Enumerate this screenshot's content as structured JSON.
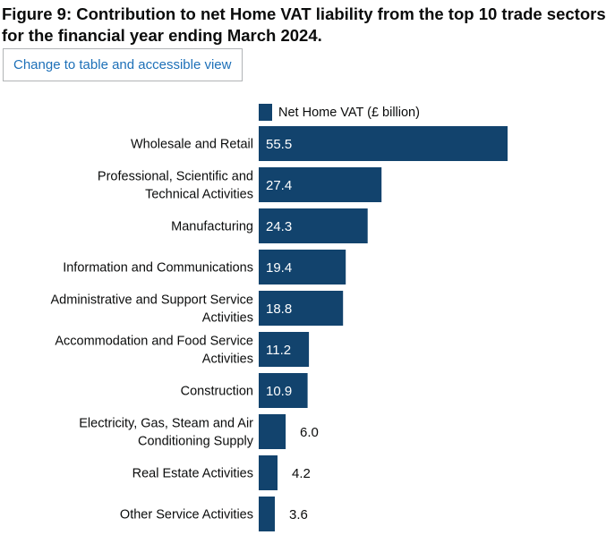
{
  "figure": {
    "title": "Figure 9: Contribution to net Home VAT liability from the top 10 trade sectors for the financial year ending March 2024.",
    "toggle_label": "Change to table and accessible view"
  },
  "colors": {
    "bar": "#12436d",
    "text": "#0b0c0c",
    "link": "#1d70b8",
    "inside_label": "#ffffff"
  },
  "chart_data": {
    "type": "bar",
    "orientation": "horizontal",
    "title": "Figure 9: Contribution to net Home VAT liability from the top 10 trade sectors for the financial year ending March 2024.",
    "xlabel": "",
    "ylabel": "",
    "xlim": [
      0,
      55.5
    ],
    "grid": false,
    "legend_position": "top",
    "series": [
      {
        "name": "Net Home VAT (£ billion)",
        "values": [
          55.5,
          27.4,
          24.3,
          19.4,
          18.8,
          11.2,
          10.9,
          6.0,
          4.2,
          3.6
        ]
      }
    ],
    "categories": [
      [
        "Wholesale and Retail"
      ],
      [
        "Professional, Scientific and",
        "Technical Activities"
      ],
      [
        "Manufacturing"
      ],
      [
        "Information and Communications"
      ],
      [
        "Administrative and Support Service",
        "Activities"
      ],
      [
        "Accommodation and Food Service",
        "Activities"
      ],
      [
        "Construction"
      ],
      [
        "Electricity, Gas, Steam and Air",
        "Conditioning Supply"
      ],
      [
        "Real Estate Activities"
      ],
      [
        "Other Service Activities"
      ]
    ],
    "value_labels": [
      "55.5",
      "27.4",
      "24.3",
      "19.4",
      "18.8",
      "11.2",
      "10.9",
      "6.0",
      "4.2",
      "3.6"
    ]
  }
}
